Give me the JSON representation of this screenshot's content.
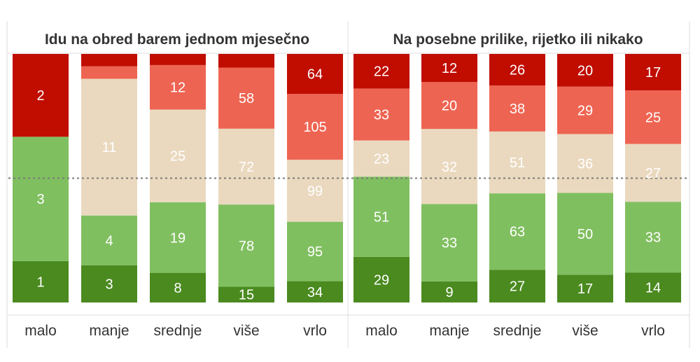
{
  "chart_data": {
    "type": "bar",
    "stacked": true,
    "normalized": true,
    "colors": {
      "dark_green": "#4a8a1f",
      "light_green": "#80bf60",
      "beige": "#ead9bf",
      "light_red": "#ee6452",
      "dark_red": "#c00d00",
      "label_light": "#ffffff",
      "label_dark": "#8a8070",
      "midline": "#7a7a7a",
      "grid": "#dddddd"
    },
    "panels": [
      {
        "title": "Idu na obred barem jednom mjesečno",
        "categories": [
          "malo",
          "manje",
          "srednje",
          "više",
          "vrlo"
        ],
        "series": [
          {
            "color_key": "dark_green",
            "values": [
              1,
              3,
              8,
              15,
              34
            ]
          },
          {
            "color_key": "light_green",
            "values": [
              3,
              4,
              19,
              78,
              95
            ]
          },
          {
            "color_key": "beige",
            "values": [
              0,
              11,
              25,
              72,
              99
            ]
          },
          {
            "color_key": "light_red",
            "values": [
              0,
              1,
              12,
              58,
              105
            ]
          },
          {
            "color_key": "dark_red",
            "values": [
              2,
              1,
              3,
              13,
              64
            ]
          }
        ],
        "shown_labels": [
          [
            true,
            true,
            true,
            true,
            true
          ],
          [
            true,
            true,
            true,
            true,
            true
          ],
          [
            false,
            true,
            true,
            true,
            true
          ],
          [
            false,
            false,
            true,
            true,
            true
          ],
          [
            true,
            false,
            false,
            false,
            true
          ]
        ]
      },
      {
        "title": "Na posebne prilike, rijetko ili nikako",
        "categories": [
          "malo",
          "manje",
          "srednje",
          "više",
          "vrlo"
        ],
        "series": [
          {
            "color_key": "dark_green",
            "values": [
              29,
              9,
              27,
              17,
              14
            ]
          },
          {
            "color_key": "light_green",
            "values": [
              51,
              33,
              63,
              50,
              33
            ]
          },
          {
            "color_key": "beige",
            "values": [
              23,
              32,
              51,
              36,
              27
            ]
          },
          {
            "color_key": "light_red",
            "values": [
              33,
              20,
              38,
              29,
              25
            ]
          },
          {
            "color_key": "dark_red",
            "values": [
              22,
              12,
              26,
              20,
              17
            ]
          }
        ],
        "shown_labels": [
          [
            true,
            true,
            true,
            true,
            true
          ],
          [
            true,
            true,
            true,
            true,
            true
          ],
          [
            true,
            true,
            true,
            true,
            true
          ],
          [
            true,
            true,
            true,
            true,
            true
          ],
          [
            true,
            true,
            true,
            true,
            true
          ]
        ]
      }
    ],
    "midline_percent": 50,
    "grid": false,
    "legend": "none"
  }
}
